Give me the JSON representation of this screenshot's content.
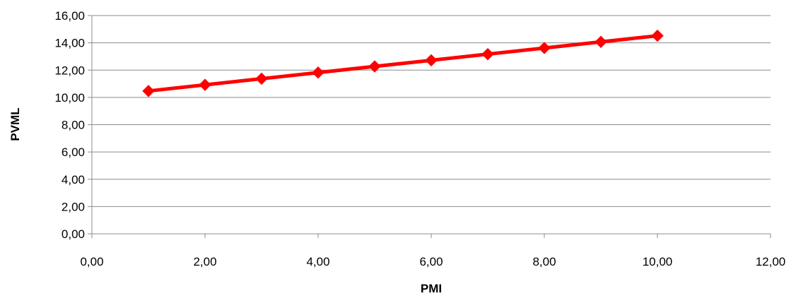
{
  "chart_data": {
    "type": "line",
    "title": "",
    "xlabel": "PMI",
    "ylabel": "PVML",
    "xlim": [
      0,
      12
    ],
    "ylim": [
      0,
      16
    ],
    "x_ticks": [
      "0,00",
      "2,00",
      "4,00",
      "6,00",
      "8,00",
      "10,00",
      "12,00"
    ],
    "y_ticks": [
      "0,00",
      "2,00",
      "4,00",
      "6,00",
      "8,00",
      "10,00",
      "12,00",
      "14,00",
      "16,00"
    ],
    "grid": {
      "horizontal": true,
      "vertical": false
    },
    "legend": "none",
    "series": [
      {
        "color": "#ff0000",
        "marker": "diamond",
        "x": [
          1,
          2,
          3,
          4,
          5,
          6,
          7,
          8,
          9,
          10
        ],
        "y": [
          10.47,
          10.92,
          11.37,
          11.82,
          12.27,
          12.72,
          13.17,
          13.62,
          14.07,
          14.52
        ]
      }
    ]
  }
}
